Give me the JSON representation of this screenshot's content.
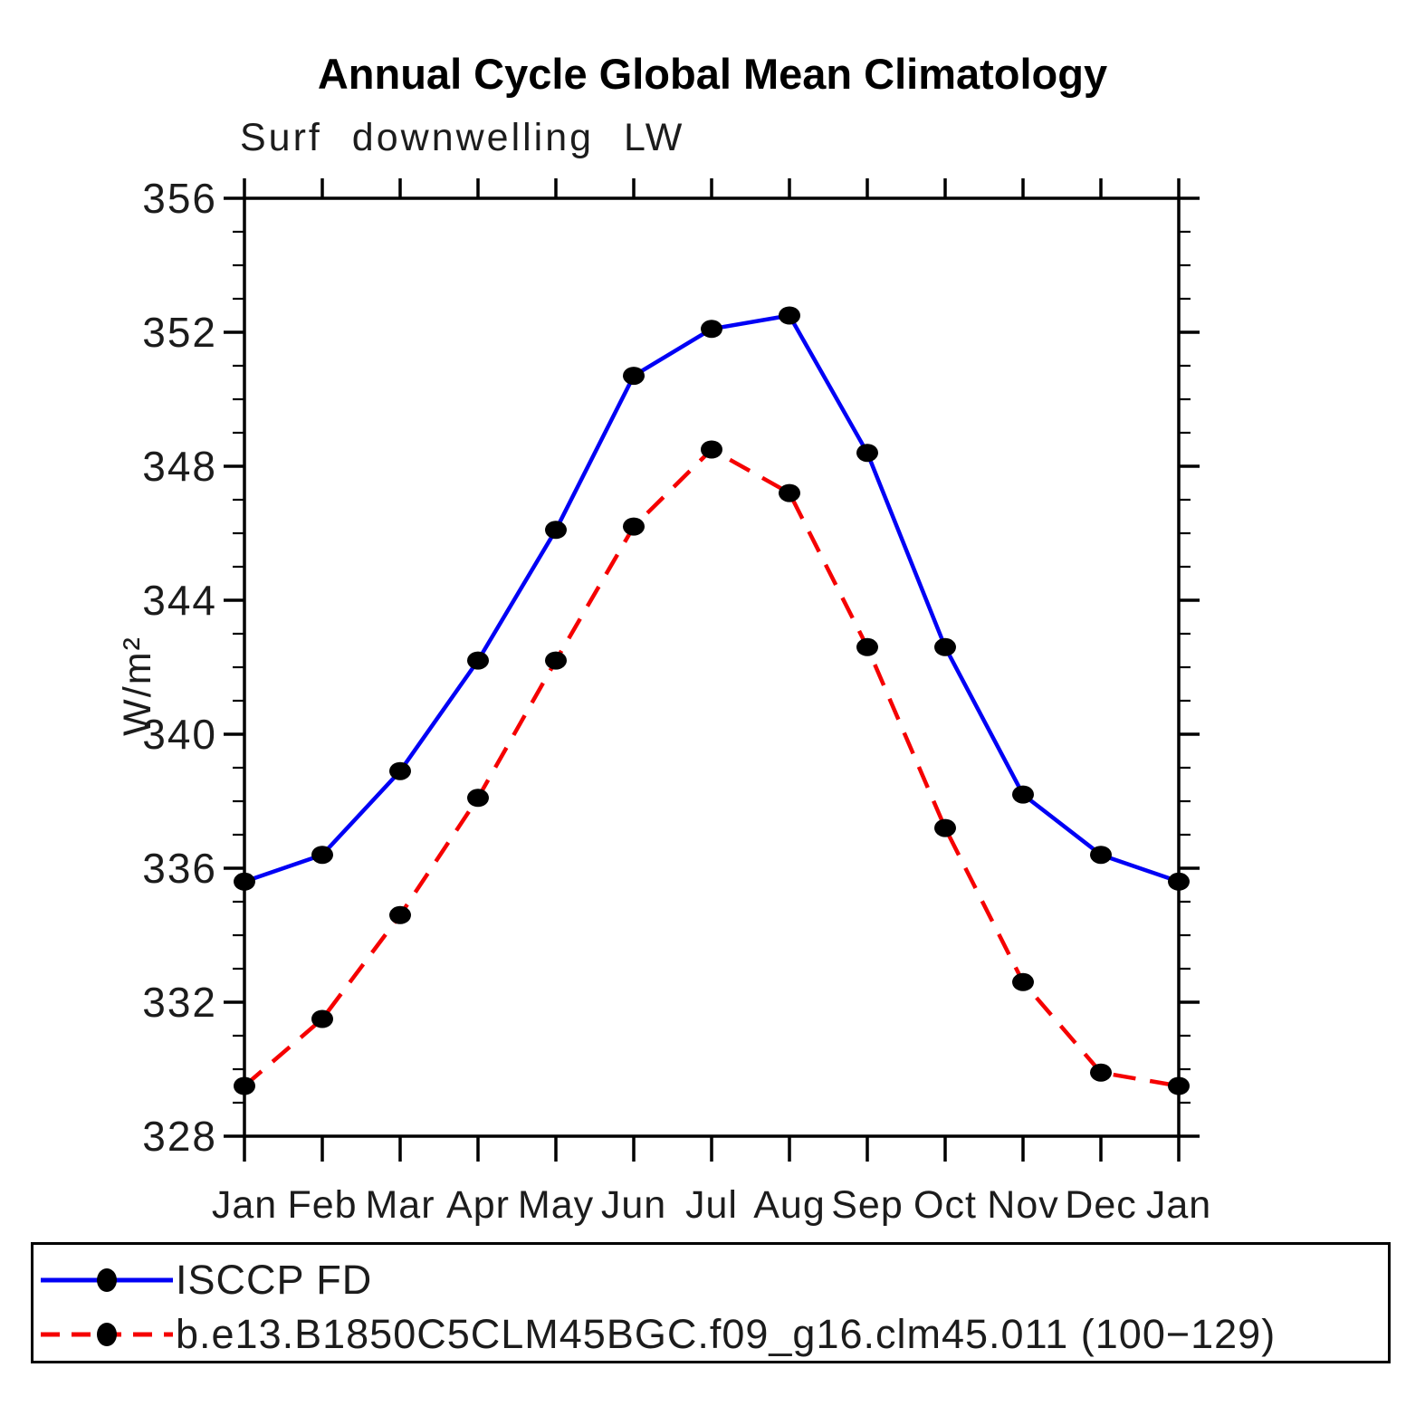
{
  "header": {
    "title": "Annual Cycle Global Mean Climatology",
    "subtitle": "Surf downwelling LW"
  },
  "chart_data": {
    "type": "line",
    "title": "Annual Cycle Global Mean Climatology",
    "subtitle": "Surf downwelling LW",
    "xlabel": "",
    "ylabel": "W/m²",
    "ylim": [
      328,
      356
    ],
    "yticks": [
      328,
      332,
      336,
      340,
      344,
      348,
      352,
      356
    ],
    "ytick_minor_step": 1,
    "grid": false,
    "legend_position": "bottom",
    "categories": [
      "Jan",
      "Feb",
      "Mar",
      "Apr",
      "May",
      "Jun",
      "Jul",
      "Aug",
      "Sep",
      "Oct",
      "Nov",
      "Dec",
      "Jan"
    ],
    "series": [
      {
        "name": "ISCCP FD",
        "color": "#0000f5",
        "line_style": "solid",
        "marker": "filled-circle",
        "marker_color": "#000000",
        "values": [
          335.6,
          336.4,
          338.9,
          342.2,
          346.1,
          350.7,
          352.1,
          352.5,
          348.4,
          342.6,
          338.2,
          336.4,
          335.6
        ]
      },
      {
        "name": "b.e13.B1850C5CLM45BGC.f09_g16.clm45.011 (100−129)",
        "color": "#f50000",
        "line_style": "dashed",
        "marker": "filled-circle",
        "marker_color": "#000000",
        "values": [
          329.5,
          331.5,
          334.6,
          338.1,
          342.2,
          346.2,
          348.5,
          347.2,
          342.6,
          337.2,
          332.6,
          329.9,
          329.5
        ]
      }
    ]
  }
}
